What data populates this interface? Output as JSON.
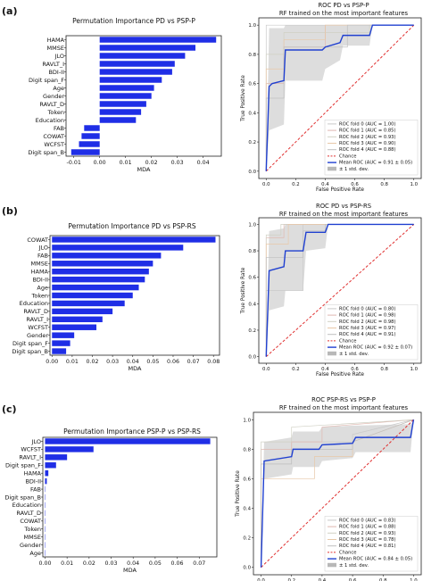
{
  "panels": [
    {
      "label": "(a)",
      "bar_title": "Permutation Importance PD vs PSP-P",
      "roc_title": "ROC PD vs PSP-P",
      "roc_subtitle": "RF trained on the most important features"
    },
    {
      "label": "(b)",
      "bar_title": "Permutation Importance   PD vs PSP-RS",
      "roc_title": "ROC PD vs PSP-RS",
      "roc_subtitle": "RF trained on the most important features"
    },
    {
      "label": "(c)",
      "bar_title": "Permutation Importance PSP-P vs PSP-RS",
      "roc_title": "ROC PSP-RS vs PSP-P",
      "roc_subtitle": "RF trained on the most important features"
    }
  ],
  "chart_data": [
    {
      "type": "bar",
      "orientation": "horizontal",
      "title": "Permutation Importance PD vs PSP-P",
      "xlabel": "MDA",
      "ylabel": "",
      "xlim": [
        -0.013,
        0.047
      ],
      "xticks": [
        "-0.01",
        "0.00",
        "0.01",
        "0.02",
        "0.03",
        "0.04"
      ],
      "xtick_values": [
        -0.01,
        0.0,
        0.01,
        0.02,
        0.03,
        0.04
      ],
      "color": "#1f2ee6",
      "categories": [
        "HAMA",
        "MMSE",
        "JLO",
        "RAVLT_I",
        "BDI-II",
        "Digit span_F",
        "Age",
        "Gender",
        "RAVLT_D",
        "Token",
        "Education",
        "FAB",
        "COWAT",
        "WCFST",
        "Digit span_B"
      ],
      "values": [
        0.045,
        0.037,
        0.033,
        0.029,
        0.028,
        0.024,
        0.021,
        0.02,
        0.018,
        0.016,
        0.014,
        -0.006,
        -0.007,
        -0.008,
        -0.011
      ]
    },
    {
      "type": "line",
      "title": "ROC PD vs PSP-P",
      "subtitle": "RF trained on the most important features",
      "xlabel": "False Positive Rate",
      "ylabel": "True Positive Rate",
      "xlim": [
        -0.05,
        1.05
      ],
      "ylim": [
        -0.05,
        1.05
      ],
      "ticks": [
        "0.0",
        "0.2",
        "0.4",
        "0.6",
        "0.8",
        "1.0"
      ],
      "tick_values": [
        0.0,
        0.2,
        0.4,
        0.6,
        0.8,
        1.0
      ],
      "legend_position": "lower right",
      "legend": [
        "ROC fold 0 (AUC = 1.00)",
        "ROC fold 1 (AUC = 0.85)",
        "ROC fold 2 (AUC = 0.93)",
        "ROC fold 3 (AUC = 0.90)",
        "ROC fold 4 (AUC = 0.88)",
        "Chance",
        "Mean ROC (AUC = 0.91 ± 0.05)",
        "± 1 std. dev."
      ],
      "folds": [
        {
          "x": [
            0,
            0,
            1
          ],
          "y": [
            0,
            1,
            1
          ]
        },
        {
          "x": [
            0,
            0,
            0.12,
            0.12,
            0.4,
            0.4,
            1
          ],
          "y": [
            0,
            0.6,
            0.6,
            0.85,
            0.85,
            1,
            1
          ]
        },
        {
          "x": [
            0,
            0,
            0.12,
            0.12,
            0.7,
            0.7,
            1
          ],
          "y": [
            0,
            0.8,
            0.8,
            0.95,
            0.95,
            1,
            1
          ]
        },
        {
          "x": [
            0,
            0,
            0.12,
            0.12,
            0.4,
            0.4,
            1
          ],
          "y": [
            0,
            0.7,
            0.7,
            0.9,
            0.9,
            1,
            1
          ]
        },
        {
          "x": [
            0,
            0,
            0.12,
            0.12,
            0.55,
            0.55,
            1
          ],
          "y": [
            0,
            0.5,
            0.5,
            0.85,
            0.85,
            1,
            1
          ]
        }
      ],
      "mean": {
        "x": [
          0,
          0.02,
          0.04,
          0.12,
          0.13,
          0.38,
          0.4,
          0.5,
          0.52,
          0.7,
          0.72,
          1
        ],
        "y": [
          0,
          0.58,
          0.6,
          0.62,
          0.83,
          0.83,
          0.85,
          0.88,
          0.93,
          0.93,
          1,
          1
        ]
      },
      "std_band": {
        "x": [
          0,
          0.02,
          0.12,
          0.13,
          0.38,
          0.4,
          0.5,
          0.52,
          0.7,
          0.72,
          1
        ],
        "upper": [
          0,
          0.98,
          0.98,
          1,
          1,
          1,
          1,
          1,
          1,
          1,
          1
        ],
        "lower": [
          0,
          0.28,
          0.32,
          0.62,
          0.62,
          0.7,
          0.76,
          0.86,
          0.86,
          1,
          1
        ]
      }
    },
    {
      "type": "bar",
      "orientation": "horizontal",
      "title": "Permutation Importance   PD vs PSP-RS",
      "xlabel": "MDA",
      "ylabel": "",
      "xlim": [
        -0.001,
        0.083
      ],
      "xticks": [
        "0.00",
        "0.01",
        "0.02",
        "0.03",
        "0.04",
        "0.05",
        "0.06",
        "0.07",
        "0.08"
      ],
      "xtick_values": [
        0,
        0.01,
        0.02,
        0.03,
        0.04,
        0.05,
        0.06,
        0.07,
        0.08
      ],
      "color": "#1f2ee6",
      "categories": [
        "COWAT",
        "JLO",
        "FAB",
        "MMSE",
        "HAMA",
        "BDI-II",
        "Age",
        "Token",
        "Education",
        "RAVLT_D",
        "RAVLT_I",
        "WCFST",
        "Gender",
        "Digit span_F",
        "Digit span_B"
      ],
      "values": [
        0.081,
        0.065,
        0.054,
        0.05,
        0.048,
        0.046,
        0.043,
        0.04,
        0.036,
        0.03,
        0.025,
        0.022,
        0.011,
        0.009,
        0.007
      ]
    },
    {
      "type": "line",
      "title": "ROC PD vs PSP-RS",
      "subtitle": "RF trained on the most important features",
      "xlabel": "False Positive Rate",
      "ylabel": "True Positive Rate",
      "xlim": [
        -0.05,
        1.05
      ],
      "ylim": [
        -0.05,
        1.05
      ],
      "ticks": [
        "0.0",
        "0.2",
        "0.4",
        "0.6",
        "0.8",
        "1.0"
      ],
      "tick_values": [
        0.0,
        0.2,
        0.4,
        0.6,
        0.8,
        1.0
      ],
      "legend_position": "lower right",
      "legend": [
        "ROC fold 0 (AUC = 0.80)",
        "ROC fold 1 (AUC = 0.98)",
        "ROC fold 2 (AUC = 0.98)",
        "ROC fold 3 (AUC = 0.97)",
        "ROC fold 4 (AUC = 0.91)",
        "Chance",
        "Mean ROC (AUC = 0.92 ± 0.07)",
        "± 1 std. dev."
      ],
      "folds": [
        {
          "x": [
            0,
            0,
            0.25,
            0.25,
            1
          ],
          "y": [
            0,
            0.5,
            0.5,
            1,
            1
          ]
        },
        {
          "x": [
            0,
            0,
            0.12,
            0.12,
            1
          ],
          "y": [
            0,
            0.9,
            0.9,
            1,
            1
          ]
        },
        {
          "x": [
            0,
            0,
            0.1,
            0.1,
            1
          ],
          "y": [
            0,
            0.92,
            0.92,
            1,
            1
          ]
        },
        {
          "x": [
            0,
            0,
            0.15,
            0.15,
            1
          ],
          "y": [
            0,
            0.85,
            0.85,
            1,
            1
          ]
        },
        {
          "x": [
            0,
            0,
            0.25,
            0.25,
            0.4,
            0.4,
            1
          ],
          "y": [
            0,
            0.75,
            0.75,
            0.95,
            0.95,
            1,
            1
          ]
        }
      ],
      "mean": {
        "x": [
          0,
          0.02,
          0.12,
          0.13,
          0.25,
          0.27,
          0.4,
          0.42,
          1
        ],
        "y": [
          0,
          0.65,
          0.68,
          0.8,
          0.8,
          0.94,
          0.94,
          1,
          1
        ]
      },
      "std_band": {
        "x": [
          0,
          0.02,
          0.12,
          0.13,
          0.25,
          0.27,
          0.4,
          0.42,
          1
        ],
        "upper": [
          0,
          0.95,
          0.97,
          1,
          1,
          1,
          1,
          1,
          1
        ],
        "lower": [
          0,
          0.35,
          0.38,
          0.5,
          0.5,
          0.8,
          0.82,
          1,
          1
        ]
      }
    },
    {
      "type": "bar",
      "orientation": "horizontal",
      "title": "Permutation Importance PSP-P vs PSP-RS",
      "xlabel": "MDA",
      "ylabel": "",
      "xlim": [
        -0.001,
        0.078
      ],
      "xticks": [
        "0.00",
        "0.01",
        "0.02",
        "0.03",
        "0.04",
        "0.05",
        "0.06",
        "0.07"
      ],
      "xtick_values": [
        0,
        0.01,
        0.02,
        0.03,
        0.04,
        0.05,
        0.06,
        0.07
      ],
      "color": "#1f2ee6",
      "categories": [
        "JLO",
        "WCFST",
        "RAVLT_I",
        "Digit span_F",
        "HAMA",
        "BDI-II",
        "FAB",
        "Digit span_B",
        "Education",
        "RAVLT_D",
        "COWAT",
        "Token",
        "MMSE",
        "Gender",
        "Age"
      ],
      "values": [
        0.075,
        0.022,
        0.01,
        0.005,
        0.0015,
        0.0008,
        0,
        0,
        0,
        0,
        0,
        0,
        0,
        0,
        0
      ]
    },
    {
      "type": "line",
      "title": "ROC PSP-RS vs PSP-P",
      "subtitle": "RF trained on the most important features",
      "xlabel": "False Positive Rate",
      "ylabel": "True Positive Rate",
      "xlim": [
        -0.05,
        1.05
      ],
      "ylim": [
        -0.05,
        1.05
      ],
      "ticks": [
        "0.0",
        "0.2",
        "0.4",
        "0.6",
        "0.8",
        "1.0"
      ],
      "tick_values": [
        0.0,
        0.2,
        0.4,
        0.6,
        0.8,
        1.0
      ],
      "legend_position": "lower right",
      "legend": [
        "ROC fold 0 (AUC = 0.83)",
        "ROC fold 1 (AUC = 0.88)",
        "ROC fold 2 (AUC = 0.93)",
        "ROC fold 3 (AUC = 0.78)",
        "ROC fold 4 (AUC = 0.81)",
        "Chance",
        "Mean ROC (AUC = 0.84 ± 0.05)",
        "± 1 std. dev."
      ],
      "folds": [
        {
          "x": [
            0,
            0,
            0.2,
            0.2,
            0.6,
            0.6,
            1
          ],
          "y": [
            0,
            0.7,
            0.7,
            0.85,
            0.85,
            0.9,
            1
          ]
        },
        {
          "x": [
            0,
            0,
            0.2,
            0.2,
            0.4,
            0.4,
            1
          ],
          "y": [
            0,
            0.8,
            0.8,
            0.85,
            0.85,
            0.95,
            1
          ]
        },
        {
          "x": [
            0,
            0,
            0.2,
            0.2,
            1
          ],
          "y": [
            0,
            0.85,
            0.85,
            0.95,
            1
          ]
        },
        {
          "x": [
            0,
            0,
            0.35,
            0.35,
            0.6,
            0.6,
            1
          ],
          "y": [
            0,
            0.6,
            0.6,
            0.75,
            0.75,
            0.85,
            1
          ]
        },
        {
          "x": [
            0,
            0,
            0.2,
            0.2,
            0.6,
            0.6,
            1
          ],
          "y": [
            0,
            0.7,
            0.7,
            0.8,
            0.8,
            0.85,
            1
          ]
        }
      ],
      "mean": {
        "x": [
          0,
          0.02,
          0.2,
          0.21,
          0.38,
          0.4,
          0.6,
          0.62,
          0.98,
          1
        ],
        "y": [
          0,
          0.72,
          0.75,
          0.8,
          0.8,
          0.83,
          0.84,
          0.88,
          0.88,
          1
        ]
      },
      "std_band": {
        "x": [
          0,
          0.02,
          0.2,
          0.21,
          0.38,
          0.4,
          0.6,
          0.62,
          0.98,
          1
        ],
        "upper": [
          0,
          0.85,
          0.88,
          0.92,
          0.92,
          0.95,
          0.96,
          0.96,
          0.97,
          1
        ],
        "lower": [
          0,
          0.6,
          0.63,
          0.68,
          0.68,
          0.72,
          0.74,
          0.78,
          0.78,
          1
        ]
      }
    }
  ]
}
